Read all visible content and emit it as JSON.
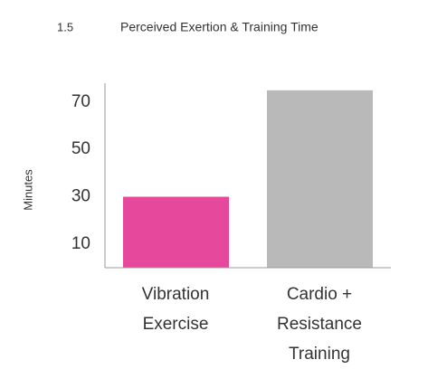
{
  "chart_data": {
    "type": "bar",
    "figure": "1.5",
    "title": "Perceived Exertion & Training Time",
    "ylabel": "Minutes",
    "categories": [
      "Vibration Exercise",
      "Cardio + Resistance Training"
    ],
    "values": [
      30,
      75
    ],
    "colors": [
      "#e6489b",
      "#b9b9b9"
    ],
    "ylim": [
      0,
      78
    ],
    "yticks": [
      10,
      30,
      50,
      70
    ],
    "grid": false
  }
}
